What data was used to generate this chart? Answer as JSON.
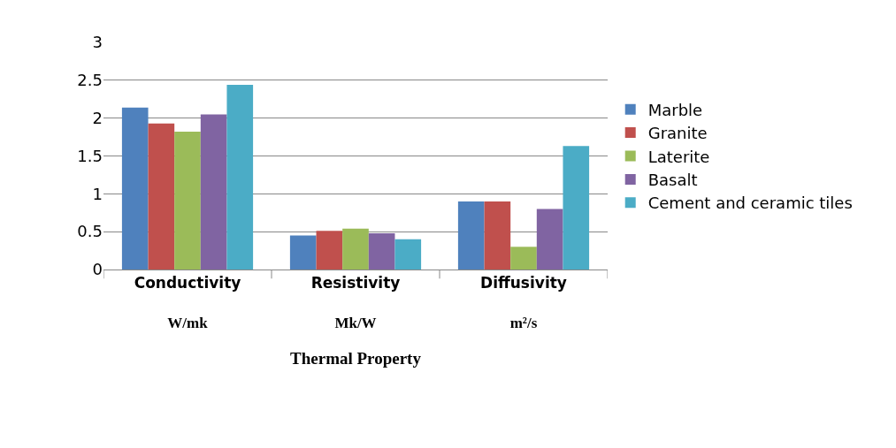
{
  "chart_data": {
    "type": "bar",
    "xlabel": "Thermal Property",
    "categories": [
      "Conductivity\nW/mk",
      "Resistivity\nMk/W",
      "Diffusivity\nm²/s"
    ],
    "series": [
      {
        "name": "Marble",
        "color": "#4f81bd",
        "values": [
          2.14,
          0.45,
          0.9
        ]
      },
      {
        "name": "Granite",
        "color": "#c0504d",
        "values": [
          1.93,
          0.51,
          0.9
        ]
      },
      {
        "name": "Laterite",
        "color": "#9bbb59",
        "values": [
          1.82,
          0.54,
          0.3
        ]
      },
      {
        "name": "Basalt",
        "color": "#8064a2",
        "values": [
          2.05,
          0.48,
          0.8
        ]
      },
      {
        "name": "Cement and ceramic tiles",
        "color": "#4bacc6",
        "values": [
          2.44,
          0.4,
          1.63
        ]
      }
    ],
    "ylim": [
      0,
      3
    ],
    "yticks": [
      0,
      0.5,
      1,
      1.5,
      2,
      2.5,
      3
    ],
    "grid": "y",
    "legend": "right"
  }
}
